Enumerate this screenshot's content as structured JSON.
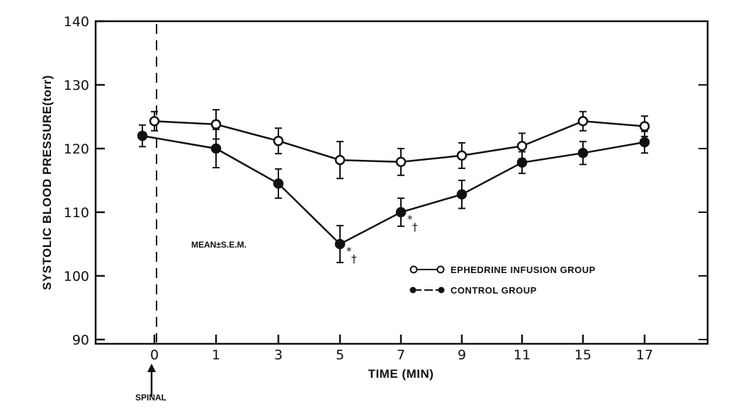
{
  "chart_data": {
    "type": "line",
    "xlabel": "TIME (MIN)",
    "ylabel": "SYSTOLIC BLOOD PRESSURE(torr)",
    "ylim": [
      90,
      140
    ],
    "yticks": [
      "90",
      "100",
      "110",
      "120",
      "130",
      "140"
    ],
    "categories": [
      "0",
      "1",
      "3",
      "5",
      "7",
      "9",
      "11",
      "15",
      "17"
    ],
    "grid": false,
    "legend_position": "lower-right",
    "annotation": "MEAN±S.E.M.",
    "event_marker": {
      "label": "SPINAL",
      "at": "0"
    },
    "significance_labels": [
      "*",
      "†"
    ],
    "series": [
      {
        "name": "EPHEDRINE INFUSION GROUP",
        "marker": "open-circle",
        "x": [
          "0",
          "1",
          "3",
          "5",
          "7",
          "9",
          "11",
          "15",
          "17"
        ],
        "values": [
          124.3,
          123.8,
          121.2,
          118.2,
          117.9,
          118.9,
          120.4,
          124.3,
          123.5
        ],
        "errors": [
          1.5,
          2.3,
          2.0,
          2.9,
          2.1,
          2.0,
          2.0,
          1.5,
          1.6
        ]
      },
      {
        "name": "CONTROL GROUP",
        "marker": "filled-circle",
        "x": [
          "-0.3",
          "1",
          "3",
          "5",
          "7",
          "9",
          "11",
          "15",
          "17"
        ],
        "values": [
          122.0,
          120.0,
          114.5,
          105.0,
          110.0,
          112.8,
          117.8,
          119.3,
          121.0
        ],
        "errors": [
          1.7,
          3.0,
          2.3,
          2.9,
          2.2,
          2.2,
          1.7,
          1.8,
          1.7
        ],
        "significant_at": [
          "5",
          "7"
        ]
      }
    ]
  }
}
